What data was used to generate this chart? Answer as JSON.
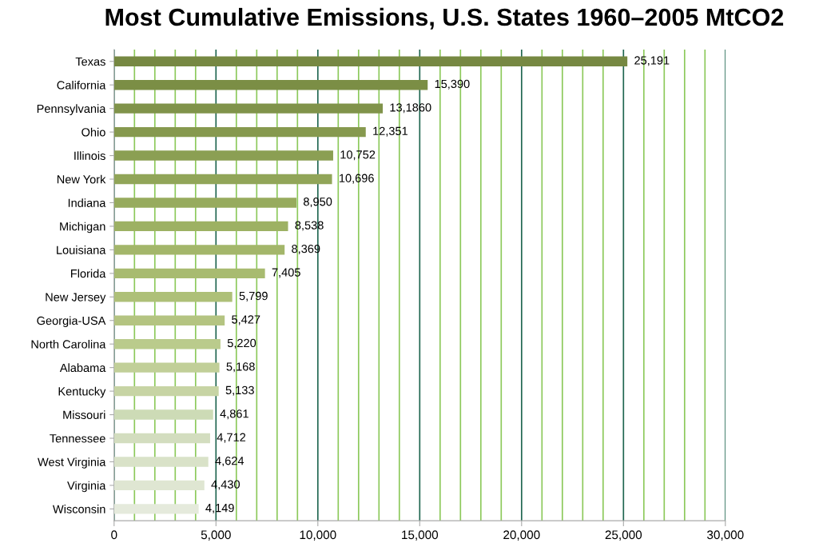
{
  "chart_data": {
    "type": "bar",
    "orientation": "horizontal",
    "title": "Most Cumulative Emissions, U.S. States 1960–2005 MtCO2",
    "categories": [
      "Texas",
      "California",
      "Pennsylvania",
      "Ohio",
      "Illinois",
      "New York",
      "Indiana",
      "Michigan",
      "Louisiana",
      "Florida",
      "New Jersey",
      "Georgia-USA",
      "North Carolina",
      "Alabama",
      "Kentucky",
      "Missouri",
      "Tennessee",
      "West Virginia",
      "Virginia",
      "Wisconsin"
    ],
    "values": [
      25191,
      15390,
      13186,
      12351,
      10752,
      10696,
      8950,
      8538,
      8369,
      7405,
      5799,
      5427,
      5220,
      5168,
      5133,
      4861,
      4712,
      4624,
      4430,
      4149
    ],
    "value_labels": [
      "25,191",
      "15,390",
      "13,1860",
      "12,351",
      "10,752",
      "10,696",
      "8,950",
      "8,538",
      "8,369",
      "7,405",
      "5,799",
      "5,427",
      "5,220",
      "5,168",
      "5,133",
      "4,861",
      "4,712",
      "4,624",
      "4,430",
      "4,149"
    ],
    "colors": [
      "#768842",
      "#7b8e45",
      "#80934a",
      "#86994e",
      "#8b9f53",
      "#91a558",
      "#97ab5e",
      "#9db163",
      "#a3b66a",
      "#a8bb70",
      "#aec078",
      "#b4c481",
      "#bacb8c",
      "#c1cf98",
      "#c7d4a4",
      "#cddbb6",
      "#d3ddbf",
      "#d9e2c8",
      "#dfe6d2",
      "#e5eadc"
    ],
    "xlim": [
      0,
      30000
    ],
    "xticks": [
      0,
      {
        "value": 1000,
        "label": null
      },
      {
        "value": 2000,
        "label": null
      },
      {
        "value": 3000,
        "label": null
      },
      {
        "value": 4000,
        "label": null
      },
      {
        "value": 5000,
        "label": "5,000"
      },
      {
        "value": 6000,
        "label": null
      },
      {
        "value": 7000,
        "label": null
      },
      {
        "value": 8000,
        "label": null
      },
      {
        "value": 9000,
        "label": null
      },
      {
        "value": 10000,
        "label": "10,000"
      },
      {
        "value": 11000,
        "label": null
      },
      {
        "value": 12000,
        "label": null
      },
      {
        "value": 13000,
        "label": null
      },
      {
        "value": 14000,
        "label": null
      },
      {
        "value": 15000,
        "label": "15,000"
      },
      {
        "value": 16000,
        "label": null
      },
      {
        "value": 17000,
        "label": null
      },
      {
        "value": 18000,
        "label": null
      },
      {
        "value": 19000,
        "label": null
      },
      {
        "value": 20000,
        "label": "20,000"
      },
      {
        "value": 21000,
        "label": null
      },
      {
        "value": 22000,
        "label": null
      },
      {
        "value": 23000,
        "label": null
      },
      {
        "value": 24000,
        "label": null
      },
      {
        "value": 25000,
        "label": "25,000"
      },
      {
        "value": 26000,
        "label": null
      },
      {
        "value": 27000,
        "label": null
      },
      {
        "value": 28000,
        "label": null
      },
      {
        "value": 29000,
        "label": null
      },
      {
        "value": 30000,
        "label": "30,000"
      }
    ],
    "grid": "x"
  }
}
